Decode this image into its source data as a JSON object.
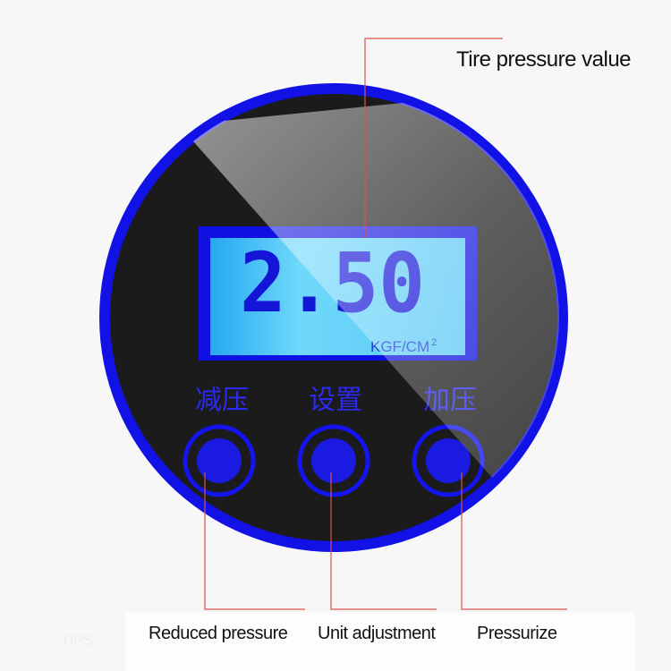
{
  "display": {
    "value": "2.50",
    "unit": "KGF/CM",
    "unit_superscript": "2"
  },
  "buttons": [
    {
      "chinese_label": "减压",
      "callout": "Reduced pressure"
    },
    {
      "chinese_label": "设置",
      "callout": "Unit adjustment"
    },
    {
      "chinese_label": "加压",
      "callout": "Pressurize"
    }
  ],
  "callouts": {
    "display": "Tire pressure value"
  },
  "watermark": "TIPS",
  "colors": {
    "ring": "#1010e8",
    "lcd": "#6fd8fb",
    "face": "#1a1a1a",
    "leader": "#d9534f"
  }
}
